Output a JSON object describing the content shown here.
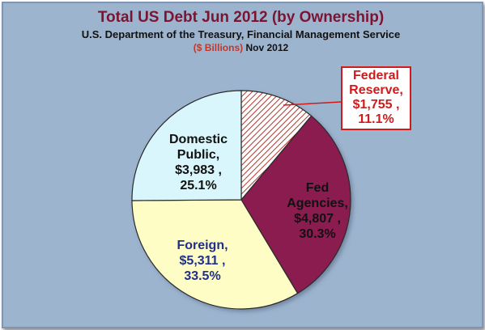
{
  "chart_data": {
    "type": "pie",
    "title": "Total US Debt Jun 2012 (by Ownership)",
    "subtitle": "U.S. Department of the Treasury, Financial Management Service",
    "unit_note": "($ Billions)",
    "date_note": "Nov 2012",
    "slices": [
      {
        "name": "Federal Reserve",
        "name_lines": [
          "Federal",
          "Reserve,"
        ],
        "value": 1755,
        "value_label": "$1,755 ,",
        "percent": 11.1,
        "percent_label": "11.1%",
        "color": "#e7b5b1",
        "hatched": true
      },
      {
        "name": "Fed Agencies",
        "name_lines": [
          "Fed",
          "Agencies,"
        ],
        "value": 4807,
        "value_label": "$4,807 ,",
        "percent": 30.3,
        "percent_label": "30.3%",
        "color": "#8a1c4f",
        "hatched": false
      },
      {
        "name": "Foreign",
        "name_lines": [
          "Foreign,"
        ],
        "value": 5311,
        "value_label": "$5,311 ,",
        "percent": 33.5,
        "percent_label": "33.5%",
        "color": "#fffdc6",
        "hatched": false
      },
      {
        "name": "Domestic Public",
        "name_lines": [
          "Domestic",
          "Public,"
        ],
        "value": 3983,
        "value_label": "$3,983 ,",
        "percent": 25.1,
        "percent_label": "25.1%",
        "color": "#d9f6fc",
        "hatched": false
      }
    ],
    "start_angle": "12 o'clock",
    "direction": "clockwise",
    "background_color": "#9db4cf"
  }
}
